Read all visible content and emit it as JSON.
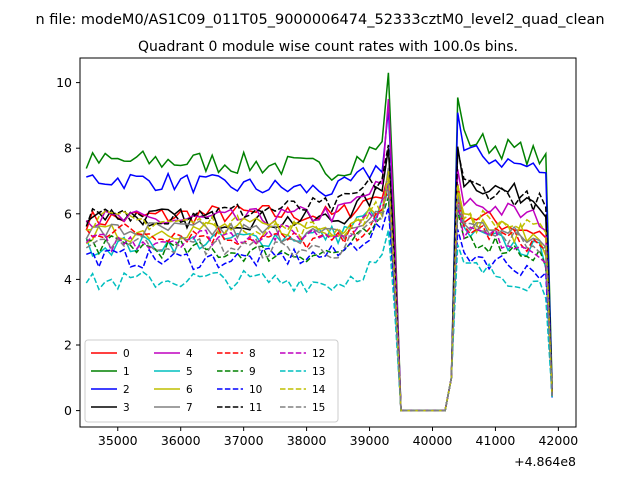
{
  "figure": {
    "suptitle": "n file: modeM0/AS1C09_011T05_9000006474_52333cztM0_level2_quad_clean",
    "title": "Quadrant 0 module wise count rates with 100.0s bins.",
    "offset_label": "+4.864e8"
  },
  "chart_data": {
    "type": "line",
    "title": "Quadrant 0 module wise count rates with 100.0s bins.",
    "xlabel": "",
    "ylabel": "",
    "x_offset": 486400000,
    "xlim": [
      34400,
      42280
    ],
    "ylim": [
      -0.5,
      10.75
    ],
    "x_ticks": [
      35000,
      36000,
      37000,
      38000,
      39000,
      40000,
      41000,
      42000
    ],
    "y_ticks": [
      0,
      2,
      4,
      6,
      8,
      10
    ],
    "grid": false,
    "legend_position": "lower-left",
    "legend_columns": 4,
    "gap_start": 39500,
    "gap_end": 40200,
    "series": [
      {
        "name": "0",
        "color": "#ff0000",
        "dash": "solid",
        "base1": 5.8,
        "base2": 6.0,
        "peak": 7.2,
        "amp": 0.3,
        "end": 0.45
      },
      {
        "name": "1",
        "color": "#008000",
        "dash": "solid",
        "base1": 7.4,
        "base2": 8.3,
        "peak": 10.3,
        "amp": 0.35,
        "end": 0.8
      },
      {
        "name": "2",
        "color": "#0000ff",
        "dash": "solid",
        "base1": 6.9,
        "base2": 7.9,
        "peak": 9.2,
        "amp": 0.3,
        "end": 0.6
      },
      {
        "name": "3",
        "color": "#000000",
        "dash": "solid",
        "base1": 6.0,
        "base2": 7.0,
        "peak": 8.0,
        "amp": 0.3,
        "end": 0.55
      },
      {
        "name": "4",
        "color": "#bf00bf",
        "dash": "solid",
        "base1": 6.0,
        "base2": 6.4,
        "peak": 9.5,
        "amp": 0.3,
        "end": 0.5
      },
      {
        "name": "5",
        "color": "#00bfbf",
        "dash": "solid",
        "base1": 5.2,
        "base2": 5.4,
        "peak": 6.6,
        "amp": 0.3,
        "end": 0.45
      },
      {
        "name": "6",
        "color": "#bfbf00",
        "dash": "solid",
        "base1": 5.4,
        "base2": 5.8,
        "peak": 7.0,
        "amp": 0.3,
        "end": 0.45
      },
      {
        "name": "7",
        "color": "#808080",
        "dash": "solid",
        "base1": 5.3,
        "base2": 5.7,
        "peak": 7.4,
        "amp": 0.3,
        "end": 0.45
      },
      {
        "name": "8",
        "color": "#ff0000",
        "dash": "dashed",
        "base1": 5.3,
        "base2": 5.6,
        "peak": 6.8,
        "amp": 0.3,
        "end": 0.45
      },
      {
        "name": "9",
        "color": "#008000",
        "dash": "dashed",
        "base1": 5.0,
        "base2": 5.3,
        "peak": 6.5,
        "amp": 0.3,
        "end": 0.45
      },
      {
        "name": "10",
        "color": "#0000ff",
        "dash": "dashed",
        "base1": 4.8,
        "base2": 4.8,
        "peak": 6.2,
        "amp": 0.3,
        "end": 0.4
      },
      {
        "name": "11",
        "color": "#000000",
        "dash": "dashed",
        "base1": 6.1,
        "base2": 6.9,
        "peak": 8.1,
        "amp": 0.3,
        "end": 0.55
      },
      {
        "name": "12",
        "color": "#bf00bf",
        "dash": "dashed",
        "base1": 5.2,
        "base2": 5.5,
        "peak": 6.9,
        "amp": 0.3,
        "end": 0.45
      },
      {
        "name": "13",
        "color": "#00bfbf",
        "dash": "dashed",
        "base1": 3.8,
        "base2": 4.4,
        "peak": 5.5,
        "amp": 0.3,
        "end": 0.4
      },
      {
        "name": "14",
        "color": "#bfbf00",
        "dash": "dashed",
        "base1": 5.6,
        "base2": 6.0,
        "peak": 7.3,
        "amp": 0.3,
        "end": 0.45
      },
      {
        "name": "15",
        "color": "#808080",
        "dash": "dashed",
        "base1": 5.1,
        "base2": 5.6,
        "peak": 6.9,
        "amp": 0.3,
        "end": 0.45
      }
    ]
  }
}
